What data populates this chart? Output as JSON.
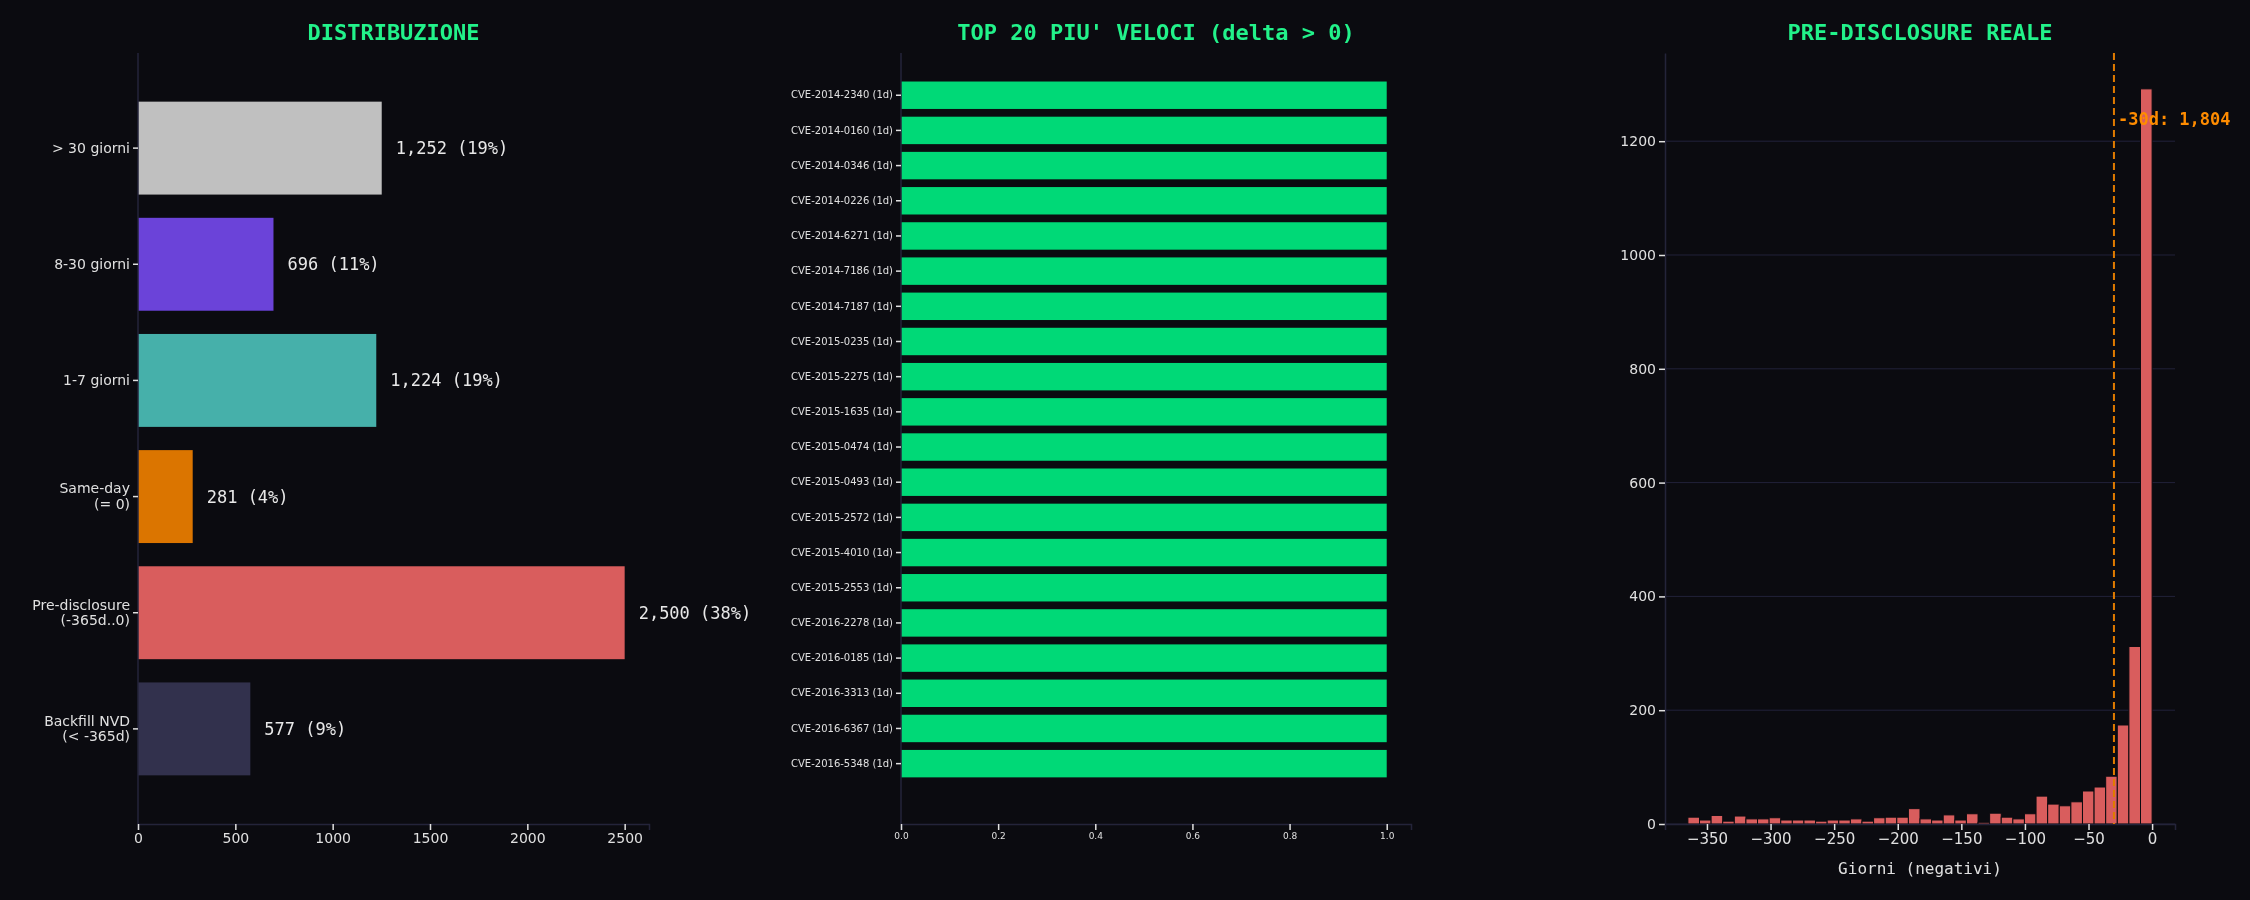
{
  "chart_data": [
    {
      "type": "bar",
      "orientation": "horizontal",
      "title": "DISTRIBUZIONE",
      "categories": [
        "> 30 giorni",
        "8-30 giorni",
        "1-7 giorni",
        "Same-day\n(= 0)",
        "Pre-disclosure\n(-365d..0)",
        "Backfill NVD\n(< -365d)"
      ],
      "values": [
        1252,
        696,
        1224,
        281,
        2500,
        577
      ],
      "colors": [
        "#c0c0c0",
        "#6b43d9",
        "#46b0aa",
        "#db7500",
        "#d95d5d",
        "#32314d"
      ],
      "value_labels": [
        "1,252 (19%)",
        "696 (11%)",
        "1,224 (19%)",
        "281 (4%)",
        "2,500 (38%)",
        "577 (9%)"
      ],
      "xlim": [
        0,
        2625
      ],
      "xticks": [
        0,
        500,
        1000,
        1500,
        2000,
        2500
      ],
      "grid": false
    },
    {
      "type": "bar",
      "orientation": "horizontal",
      "title": "TOP 20 PIU' VELOCI (delta > 0)",
      "categories": [
        "CVE-2014-2340 (1d)",
        "CVE-2014-0160 (1d)",
        "CVE-2014-0346 (1d)",
        "CVE-2014-0226 (1d)",
        "CVE-2014-6271 (1d)",
        "CVE-2014-7186 (1d)",
        "CVE-2014-7187 (1d)",
        "CVE-2015-0235 (1d)",
        "CVE-2015-2275 (1d)",
        "CVE-2015-1635 (1d)",
        "CVE-2015-0474 (1d)",
        "CVE-2015-0493 (1d)",
        "CVE-2015-2572 (1d)",
        "CVE-2015-4010 (1d)",
        "CVE-2015-2553 (1d)",
        "CVE-2016-2278 (1d)",
        "CVE-2016-0185 (1d)",
        "CVE-2016-3313 (1d)",
        "CVE-2016-6367 (1d)",
        "CVE-2016-5348 (1d)"
      ],
      "values": [
        1,
        1,
        1,
        1,
        1,
        1,
        1,
        1,
        1,
        1,
        1,
        1,
        1,
        1,
        1,
        1,
        1,
        1,
        1,
        1
      ],
      "color": "#00d977",
      "xlim": [
        0,
        1.05
      ],
      "xticks": [
        {
          "value": 0,
          "label": "0.0"
        },
        {
          "value": 0.2,
          "label": "0.2"
        },
        {
          "value": 0.4,
          "label": "0.4"
        },
        {
          "value": 0.6,
          "label": "0.6"
        },
        {
          "value": 0.8,
          "label": "0.8"
        },
        {
          "value": 1,
          "label": "1.0"
        }
      ],
      "grid": false
    },
    {
      "type": "histogram",
      "title": "PRE-DISCLOSURE REALE",
      "xlabel": "Giorni (negativi)",
      "color": "#d95d5d",
      "bins": [
        -365,
        -355.875,
        -346.75,
        -337.625,
        -328.5,
        -319.375,
        -310.25,
        -301.125,
        -292,
        -282.875,
        -273.75,
        -264.625,
        -255.5,
        -246.375,
        -237.25,
        -228.125,
        -219,
        -209.875,
        -200.75,
        -191.625,
        -182.5,
        -173.375,
        -164.25,
        -155.125,
        -146,
        -136.875,
        -127.75,
        -118.625,
        -109.5,
        -100.375,
        -91.25,
        -82.125,
        -73,
        -63.875,
        -54.75,
        -45.625,
        -36.5,
        -27.375,
        -18.25,
        -9.125,
        0
      ],
      "values": [
        12,
        7,
        15,
        5,
        14,
        9,
        9,
        11,
        7,
        7,
        7,
        5,
        7,
        7,
        9,
        5,
        11,
        12,
        12,
        27,
        9,
        7,
        16,
        7,
        18,
        3,
        19,
        12,
        9,
        18,
        49,
        35,
        32,
        39,
        58,
        65,
        84,
        174,
        312,
        1292
      ],
      "xlim": [
        -383,
        18
      ],
      "ylim": [
        0,
        1355
      ],
      "xticks": [
        {
          "value": -350,
          "label": "−350"
        },
        {
          "value": -300,
          "label": "−300"
        },
        {
          "value": -250,
          "label": "−250"
        },
        {
          "value": -200,
          "label": "−200"
        },
        {
          "value": -150,
          "label": "−150"
        },
        {
          "value": -100,
          "label": "−100"
        },
        {
          "value": -50,
          "label": "−50"
        },
        0
      ],
      "yticks": [
        0,
        200,
        400,
        600,
        800,
        1000,
        1200
      ],
      "grid": "y",
      "ref_lines": [
        {
          "axis": "x",
          "value": -30,
          "label": "-30d: 1,804",
          "color": "#e07b00",
          "line_style": "dashed"
        }
      ]
    }
  ]
}
